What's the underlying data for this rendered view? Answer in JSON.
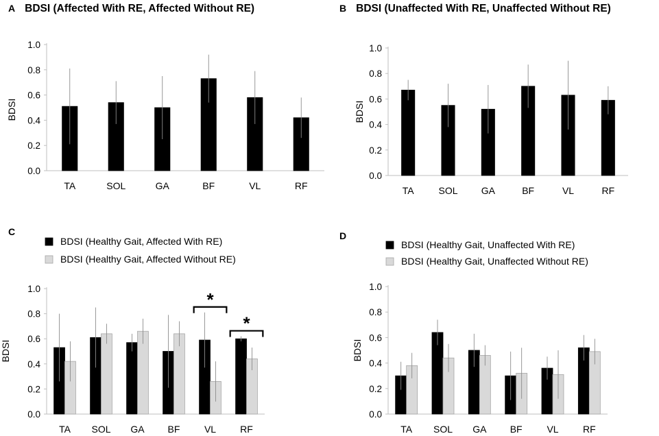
{
  "chart_data": [
    {
      "panel": "A",
      "type": "bar",
      "title": "BDSI (Affected With RE, Affected Without RE)",
      "ylabel": "BDSI",
      "categories": [
        "TA",
        "SOL",
        "GA",
        "BF",
        "VL",
        "RF"
      ],
      "ylim": [
        0,
        1.0
      ],
      "yticks": [
        "0.0",
        "0.2",
        "0.4",
        "0.6",
        "0.8",
        "1.0"
      ],
      "series": [
        {
          "name": "BDSI",
          "color": "#000000",
          "values": [
            0.51,
            0.54,
            0.5,
            0.73,
            0.58,
            0.42
          ],
          "err": [
            0.3,
            0.17,
            0.25,
            0.19,
            0.21,
            0.16
          ]
        }
      ]
    },
    {
      "panel": "B",
      "type": "bar",
      "title": "BDSI (Unaffected With RE, Unaffected Without RE)",
      "ylabel": "BDSI",
      "categories": [
        "TA",
        "SOL",
        "GA",
        "BF",
        "VL",
        "RF"
      ],
      "ylim": [
        0,
        1.0
      ],
      "yticks": [
        "0.0",
        "0.2",
        "0.4",
        "0.6",
        "0.8",
        "1.0"
      ],
      "series": [
        {
          "name": "BDSI",
          "color": "#000000",
          "values": [
            0.67,
            0.55,
            0.52,
            0.7,
            0.63,
            0.59
          ],
          "err": [
            0.08,
            0.17,
            0.19,
            0.17,
            0.27,
            0.11
          ]
        }
      ]
    },
    {
      "panel": "C",
      "type": "bar",
      "title": "",
      "ylabel": "BDSI",
      "categories": [
        "TA",
        "SOL",
        "GA",
        "BF",
        "VL",
        "RF"
      ],
      "ylim": [
        0,
        1.0
      ],
      "yticks": [
        "0.0",
        "0.2",
        "0.4",
        "0.6",
        "0.8",
        "1.0"
      ],
      "series": [
        {
          "name": "BDSI (Healthy Gait, Affected With RE)",
          "color": "#000000",
          "values": [
            0.53,
            0.61,
            0.57,
            0.5,
            0.59,
            0.6
          ],
          "err": [
            0.27,
            0.24,
            0.07,
            0.29,
            0.22,
            0.02
          ]
        },
        {
          "name": "BDSI (Healthy Gait, Affected Without RE)",
          "color": "#d9d9d9",
          "values": [
            0.42,
            0.64,
            0.66,
            0.64,
            0.26,
            0.44
          ],
          "err": [
            0.16,
            0.08,
            0.1,
            0.1,
            0.16,
            0.09
          ]
        }
      ],
      "annotations": [
        {
          "text": "*",
          "category": "VL"
        },
        {
          "text": "*",
          "category": "RF"
        }
      ]
    },
    {
      "panel": "D",
      "type": "bar",
      "title": "",
      "ylabel": "BDSI",
      "categories": [
        "TA",
        "SOL",
        "GA",
        "BF",
        "VL",
        "RF"
      ],
      "ylim": [
        0,
        1.0
      ],
      "yticks": [
        "0.0",
        "0.2",
        "0.4",
        "0.6",
        "0.8",
        "1.0"
      ],
      "series": [
        {
          "name": "BDSI (Healthy Gait, Unaffected With RE)",
          "color": "#000000",
          "values": [
            0.3,
            0.64,
            0.5,
            0.3,
            0.36,
            0.52
          ],
          "err": [
            0.11,
            0.1,
            0.13,
            0.19,
            0.09,
            0.1
          ]
        },
        {
          "name": "BDSI (Healthy Gait, Unaffected Without RE)",
          "color": "#d9d9d9",
          "values": [
            0.38,
            0.44,
            0.46,
            0.32,
            0.31,
            0.49
          ],
          "err": [
            0.1,
            0.11,
            0.08,
            0.2,
            0.19,
            0.1
          ]
        }
      ]
    }
  ]
}
